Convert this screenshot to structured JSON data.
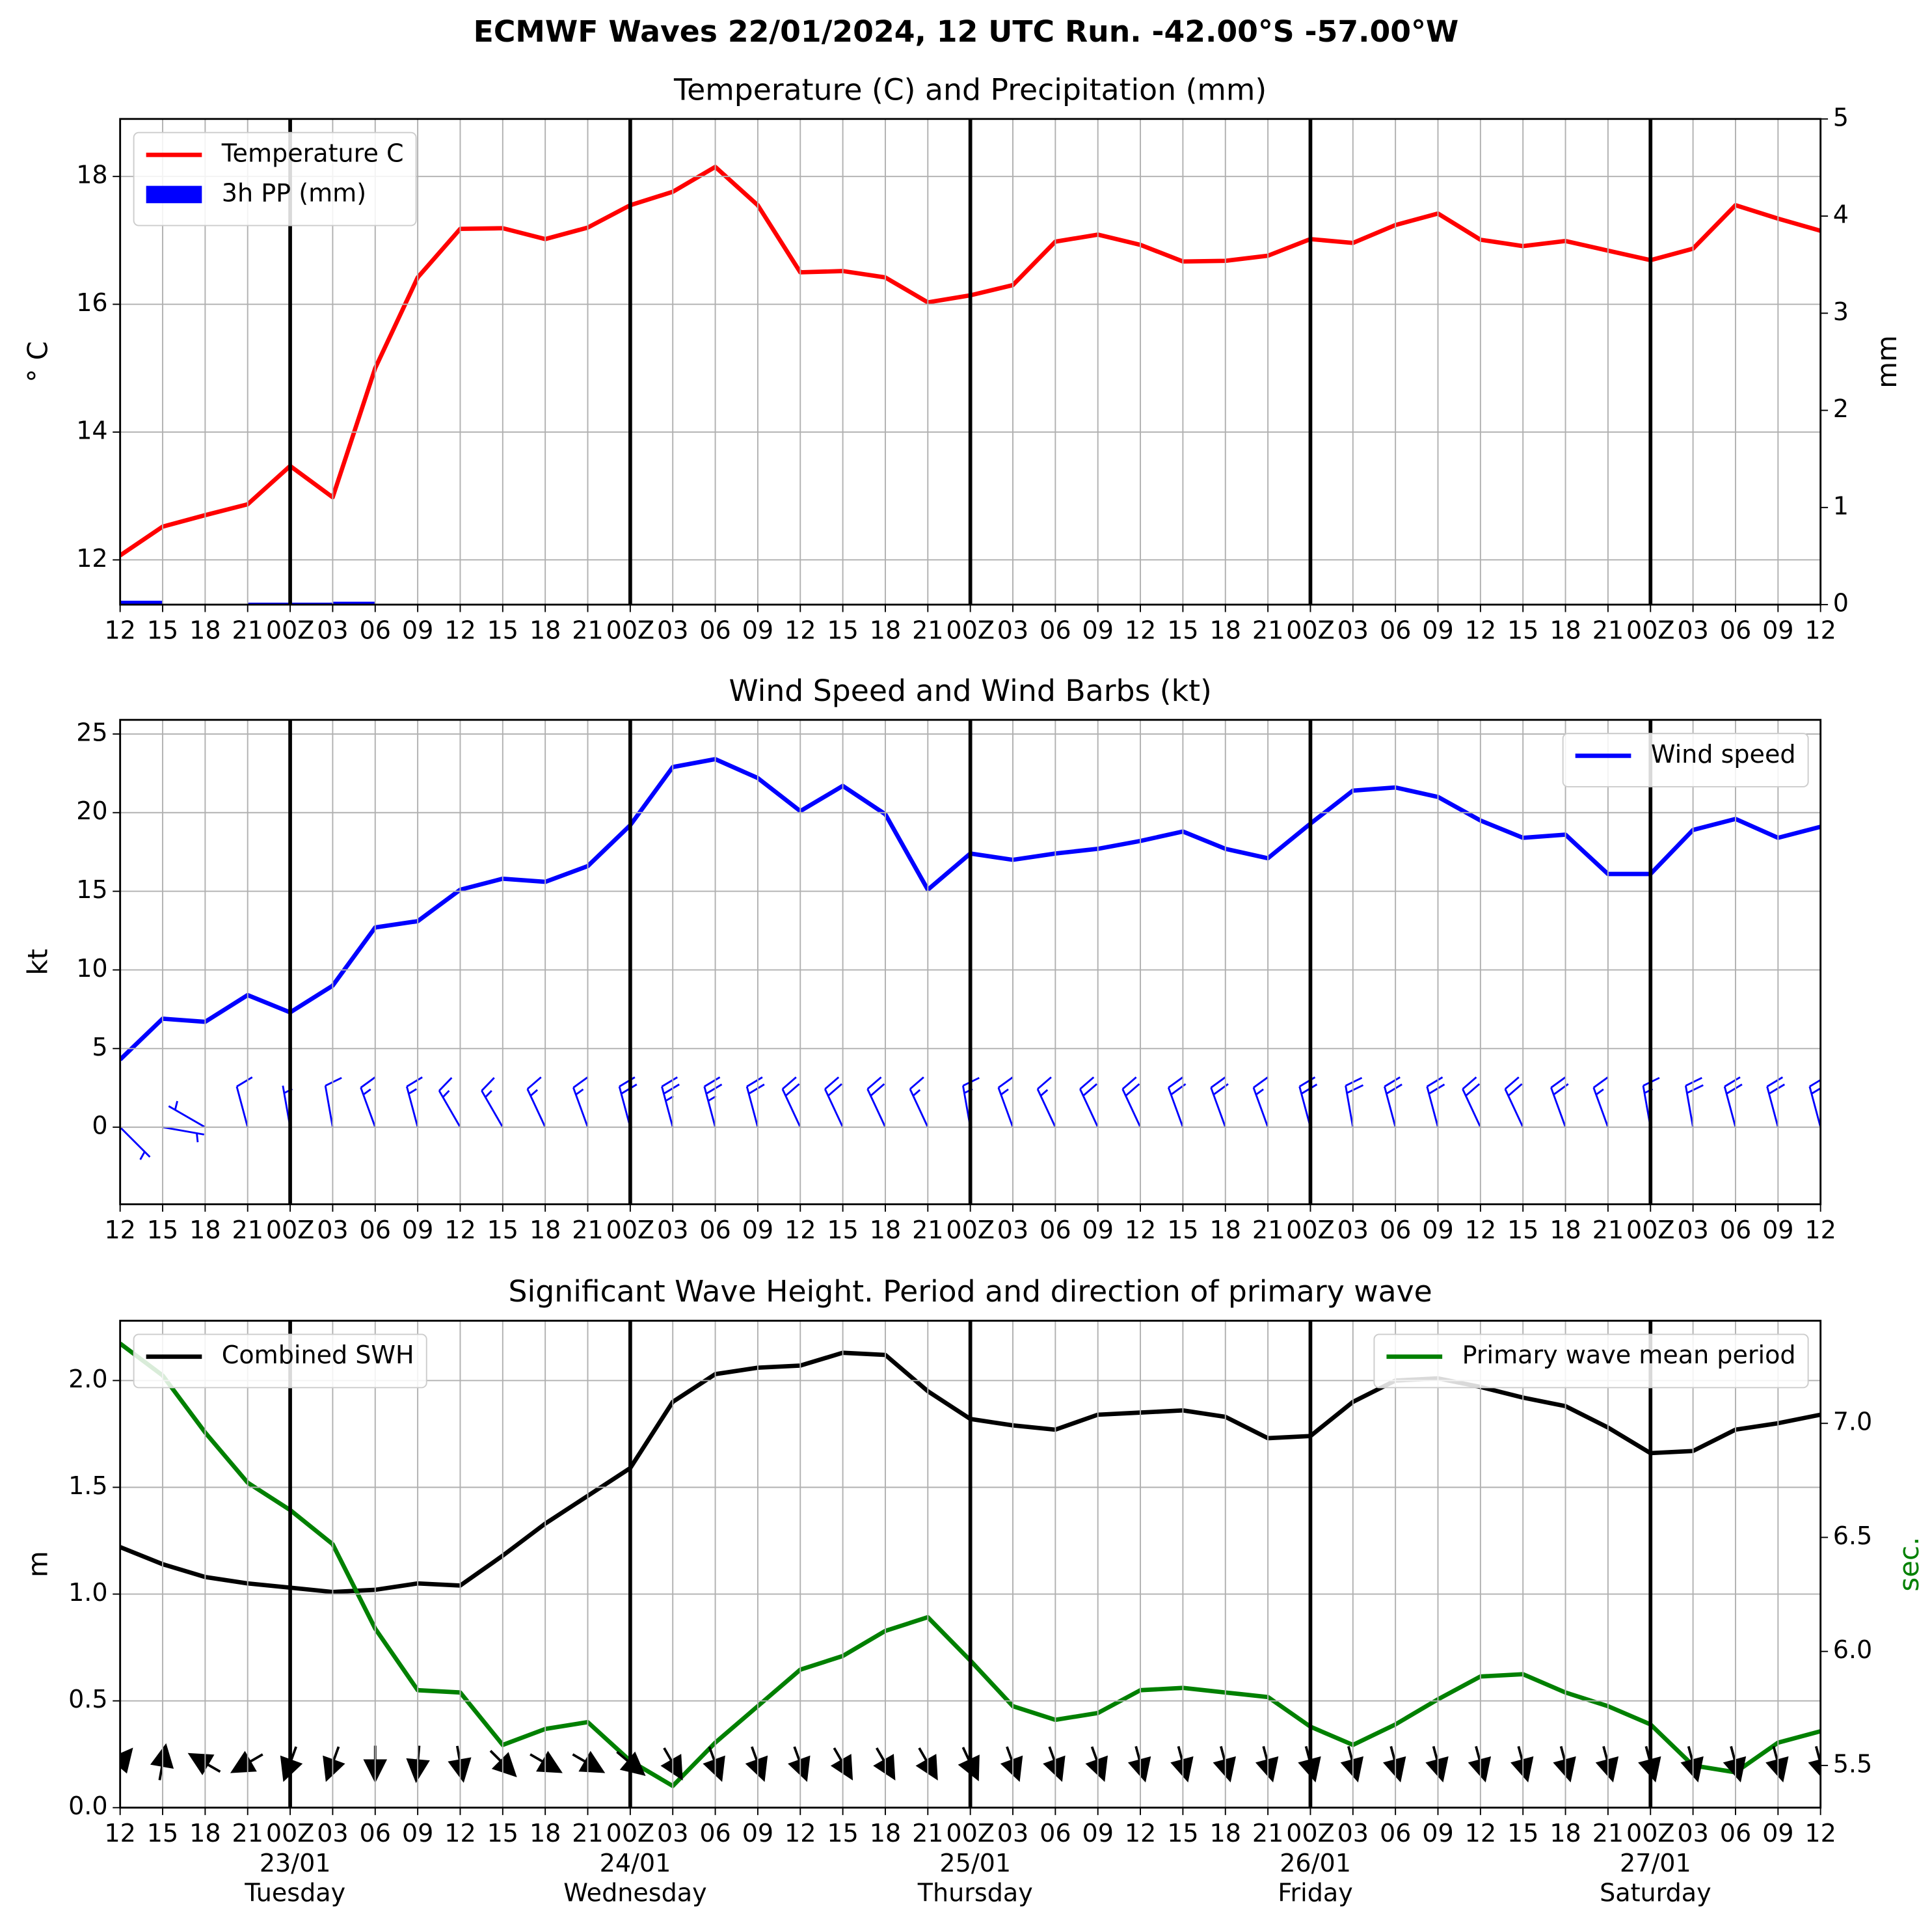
{
  "title": "ECMWF Waves 22/01/2024, 12 UTC Run. -42.00°S -57.00°W",
  "chart_data": [
    {
      "type": "line",
      "title": "Temperature (C) and Precipitation (mm)",
      "ylabel": "° C",
      "y2label": "mm",
      "categories": [
        "12",
        "15",
        "18",
        "21",
        "00Z",
        "03",
        "06",
        "09",
        "12",
        "15",
        "18",
        "21",
        "00Z",
        "03",
        "06",
        "09",
        "12",
        "15",
        "18",
        "21",
        "00Z",
        "03",
        "06",
        "09",
        "12",
        "15",
        "18",
        "21",
        "00Z",
        "03",
        "06",
        "09",
        "12",
        "15",
        "18",
        "21",
        "00Z",
        "03",
        "06",
        "09",
        "12"
      ],
      "ylim": [
        11.3,
        18.9
      ],
      "yticks": [
        12,
        14,
        16,
        18
      ],
      "y2lim": [
        0,
        5
      ],
      "y2ticks": [
        0,
        1,
        2,
        3,
        4,
        5
      ],
      "grid": true,
      "series": [
        {
          "name": "Temperature C",
          "color": "#ff0000",
          "legend": "upper left",
          "values": [
            12.07,
            12.52,
            12.7,
            12.87,
            13.47,
            12.98,
            15.0,
            16.42,
            17.18,
            17.19,
            17.02,
            17.2,
            17.55,
            17.76,
            18.15,
            17.55,
            16.5,
            16.52,
            16.42,
            16.03,
            16.14,
            16.3,
            16.98,
            17.09,
            16.93,
            16.67,
            16.68,
            16.76,
            17.02,
            16.96,
            17.24,
            17.42,
            17.01,
            16.91,
            16.99,
            16.84,
            16.69,
            16.87,
            17.55,
            17.34,
            17.15
          ]
        },
        {
          "name": "3h PP (mm)",
          "type": "bar",
          "color": "#0000ff",
          "axis": "y2",
          "legend": "upper left",
          "values": [
            0.04,
            0,
            0,
            0.02,
            0.02,
            0.03,
            0,
            0,
            0,
            0,
            0,
            0,
            0,
            0,
            0,
            0,
            0,
            0,
            0,
            0,
            0,
            0,
            0,
            0,
            0,
            0,
            0,
            0,
            0,
            0,
            0,
            0,
            0,
            0,
            0,
            0,
            0,
            0,
            0,
            0,
            0
          ]
        }
      ]
    },
    {
      "type": "line",
      "title": "Wind Speed and Wind Barbs (kt)",
      "ylabel": "kt",
      "categories": [
        "12",
        "15",
        "18",
        "21",
        "00Z",
        "03",
        "06",
        "09",
        "12",
        "15",
        "18",
        "21",
        "00Z",
        "03",
        "06",
        "09",
        "12",
        "15",
        "18",
        "21",
        "00Z",
        "03",
        "06",
        "09",
        "12",
        "15",
        "18",
        "21",
        "00Z",
        "03",
        "06",
        "09",
        "12",
        "15",
        "18",
        "21",
        "00Z",
        "03",
        "06",
        "09",
        "12"
      ],
      "ylim": [
        -4.9,
        25.9
      ],
      "yticks": [
        0,
        5,
        10,
        15,
        20,
        25
      ],
      "grid": true,
      "series": [
        {
          "name": "Wind speed",
          "color": "#0000ff",
          "legend": "upper right",
          "values": [
            4.3,
            6.9,
            6.7,
            8.4,
            7.3,
            9.0,
            12.7,
            13.1,
            15.1,
            15.8,
            15.6,
            16.6,
            19.2,
            22.9,
            23.4,
            22.2,
            20.1,
            21.7,
            19.9,
            15.1,
            17.4,
            17.0,
            17.4,
            17.7,
            18.2,
            18.8,
            17.7,
            17.1,
            19.3,
            21.4,
            21.6,
            21.0,
            19.5,
            18.4,
            18.6,
            16.1,
            16.1,
            18.9,
            19.6,
            18.4,
            19.1
          ]
        }
      ],
      "barbs": {
        "color": "#0000ff",
        "directions": [
          135,
          100,
          300,
          345,
          350,
          350,
          340,
          345,
          330,
          330,
          335,
          340,
          345,
          345,
          345,
          345,
          335,
          335,
          335,
          335,
          350,
          340,
          335,
          335,
          335,
          340,
          340,
          340,
          345,
          350,
          345,
          345,
          335,
          335,
          340,
          340,
          350,
          350,
          345,
          345,
          345
        ]
      }
    },
    {
      "type": "line",
      "title": "Significant Wave Height. Period and direction of primary wave",
      "ylabel": "m",
      "y2label": "sec.",
      "y2color": "#008000",
      "categories": [
        "12",
        "15",
        "18",
        "21",
        "00Z",
        "03",
        "06",
        "09",
        "12",
        "15",
        "18",
        "21",
        "00Z",
        "03",
        "06",
        "09",
        "12",
        "15",
        "18",
        "21",
        "00Z",
        "03",
        "06",
        "09",
        "12",
        "15",
        "18",
        "21",
        "00Z",
        "03",
        "06",
        "09",
        "12",
        "15",
        "18",
        "21",
        "00Z",
        "03",
        "06",
        "09",
        "12"
      ],
      "ylim": [
        0,
        2.28
      ],
      "yticks": [
        {
          "value": 0,
          "label": "0.0"
        },
        0.5,
        {
          "value": 1,
          "label": "1.0"
        },
        1.5,
        {
          "value": 2,
          "label": "2.0"
        }
      ],
      "y2lim": [
        5.315,
        7.45
      ],
      "y2ticks": [
        5.5,
        {
          "value": 6,
          "label": "6.0"
        },
        6.5,
        {
          "value": 7,
          "label": "7.0"
        }
      ],
      "grid": true,
      "series": [
        {
          "name": "Combined SWH",
          "color": "#000000",
          "legend": "upper left",
          "values": [
            1.22,
            1.14,
            1.08,
            1.05,
            1.03,
            1.01,
            1.02,
            1.05,
            1.04,
            1.18,
            1.33,
            1.46,
            1.59,
            1.9,
            2.03,
            2.06,
            2.07,
            2.13,
            2.12,
            1.95,
            1.82,
            1.79,
            1.77,
            1.84,
            1.85,
            1.86,
            1.83,
            1.73,
            1.74,
            1.9,
            2.0,
            2.01,
            1.97,
            1.92,
            1.88,
            1.78,
            1.66,
            1.67,
            1.77,
            1.8,
            1.84
          ]
        },
        {
          "name": "Primary wave mean period",
          "color": "#008000",
          "axis": "y2",
          "legend": "upper right",
          "values": [
            7.35,
            7.21,
            6.96,
            6.74,
            6.62,
            6.47,
            6.1,
            5.83,
            5.82,
            5.59,
            5.66,
            5.69,
            5.52,
            5.41,
            5.6,
            5.76,
            5.92,
            5.98,
            6.09,
            6.15,
            5.96,
            5.76,
            5.7,
            5.73,
            5.83,
            5.84,
            5.82,
            5.8,
            5.67,
            5.59,
            5.68,
            5.79,
            5.89,
            5.9,
            5.82,
            5.76,
            5.68,
            5.5,
            5.47,
            5.6,
            5.65
          ]
        }
      ],
      "arrows": {
        "color": "#000000",
        "directions": [
          40,
          10,
          300,
          240,
          200,
          200,
          180,
          185,
          170,
          135,
          120,
          120,
          130,
          150,
          160,
          160,
          160,
          150,
          150,
          150,
          155,
          160,
          160,
          160,
          165,
          165,
          165,
          165,
          165,
          165,
          165,
          165,
          165,
          165,
          165,
          165,
          165,
          165,
          165,
          165,
          165
        ]
      },
      "day_labels": [
        {
          "date": "23/01",
          "day": "Tuesday"
        },
        {
          "date": "24/01",
          "day": "Wednesday"
        },
        {
          "date": "25/01",
          "day": "Thursday"
        },
        {
          "date": "26/01",
          "day": "Friday"
        },
        {
          "date": "27/01",
          "day": "Saturday"
        }
      ]
    }
  ]
}
